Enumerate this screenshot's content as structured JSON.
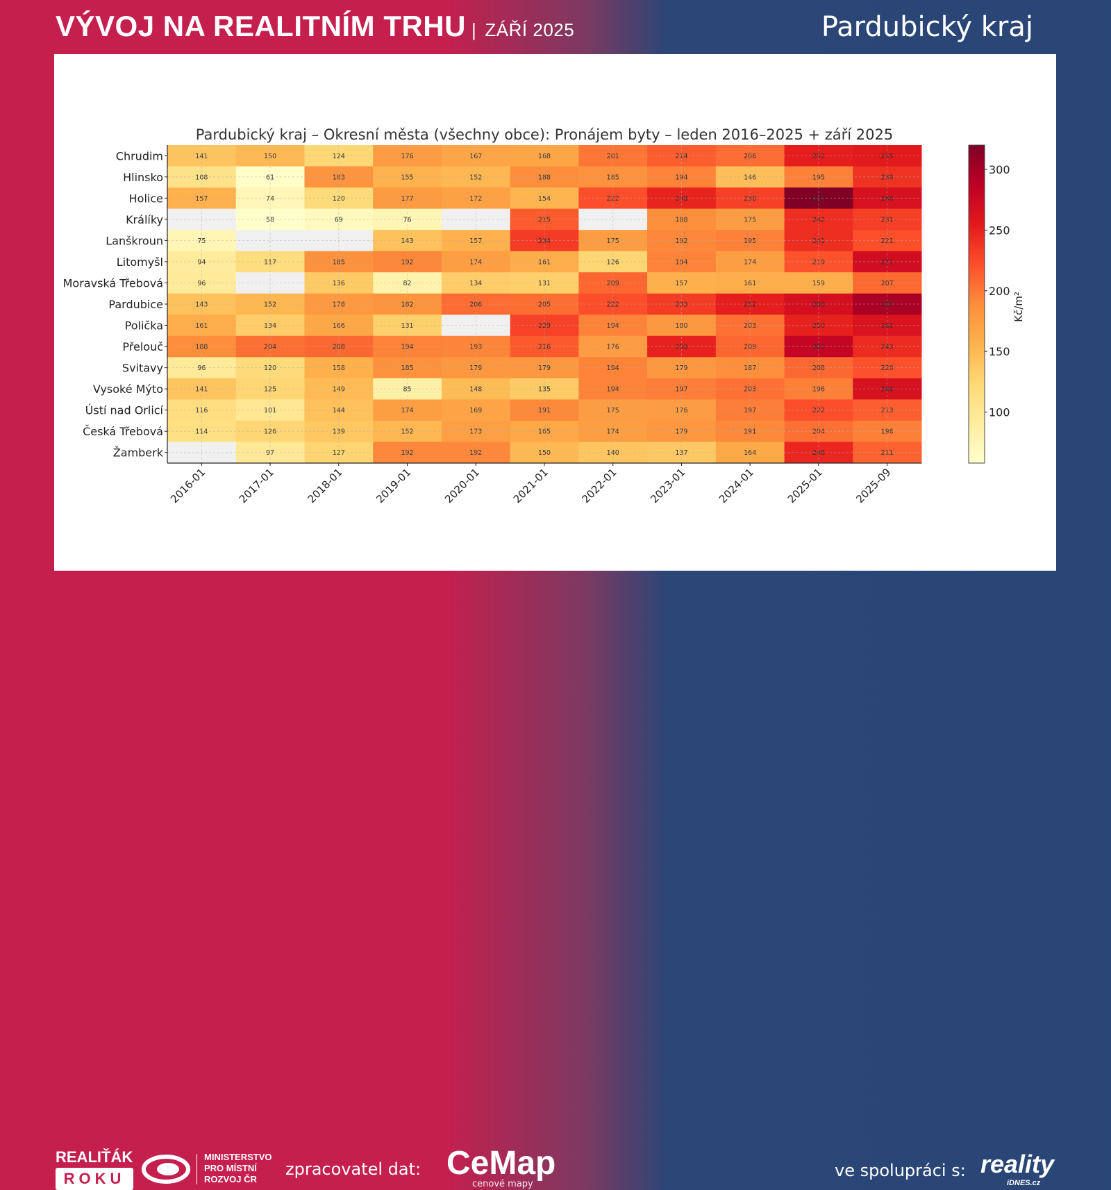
{
  "header": {
    "title": "VÝVOJ NA REALITNÍM TRHU",
    "separator": "|",
    "date": "ZÁŘÍ 2025",
    "region": "Pardubický kraj"
  },
  "footer": {
    "realitak_top": "REALIŤÁK",
    "realitak_bottom": "ROKU",
    "ministry_line1": "MINISTERSTVO",
    "ministry_line2": "PRO MÍSTNÍ",
    "ministry_line3": "ROZVOJ ČR",
    "processor_label": "zpracovatel dat:",
    "cemap_logo": "CeMap",
    "cemap_sub": "cenové mapy",
    "cooperation_label": "ve spolupráci s:",
    "reality_logo": "reality",
    "reality_sub": "iDNES.cz"
  },
  "colors": {
    "brand_red": "#c51f4e",
    "brand_blue": "#2a4677",
    "missing_cell": "#f0f0f0"
  },
  "chart_data": {
    "type": "heatmap",
    "title": "Pardubický kraj – Okresní města (všechny obce): Pronájem byty – leden 2016–2025 + září 2025",
    "xlabel": "",
    "ylabel": "",
    "colorbar_label": "Kč/m²",
    "colormap": "YlOrRd",
    "vmin": 58,
    "vmax": 320,
    "colorbar_ticks": [
      100,
      150,
      200,
      250,
      300
    ],
    "grid": true,
    "x": [
      "2016-01",
      "2017-01",
      "2018-01",
      "2019-01",
      "2020-01",
      "2021-01",
      "2022-01",
      "2023-01",
      "2024-01",
      "2025-01",
      "2025-09"
    ],
    "y": [
      "Chrudim",
      "Hlinsko",
      "Holice",
      "Králíky",
      "Lanškroun",
      "Litomyšl",
      "Moravská Třebová",
      "Pardubice",
      "Polička",
      "Přelouč",
      "Svitavy",
      "Vysoké Mýto",
      "Ústí nad Orlicí",
      "Česká Třebová",
      "Žamberk"
    ],
    "values": [
      [
        141,
        150,
        124,
        176,
        167,
        168,
        201,
        214,
        206,
        252,
        255
      ],
      [
        108,
        61,
        183,
        155,
        152,
        188,
        185,
        194,
        146,
        195,
        239
      ],
      [
        157,
        74,
        120,
        177,
        172,
        154,
        222,
        248,
        230,
        320,
        266
      ],
      [
        null,
        58,
        69,
        76,
        null,
        215,
        null,
        188,
        175,
        242,
        231
      ],
      [
        75,
        null,
        null,
        143,
        157,
        234,
        175,
        192,
        195,
        241,
        221
      ],
      [
        94,
        117,
        185,
        192,
        174,
        161,
        126,
        194,
        174,
        219,
        271
      ],
      [
        96,
        null,
        136,
        82,
        134,
        131,
        209,
        157,
        161,
        159,
        207
      ],
      [
        143,
        152,
        178,
        182,
        206,
        205,
        222,
        233,
        252,
        268,
        297
      ],
      [
        161,
        134,
        166,
        131,
        null,
        229,
        194,
        180,
        203,
        250,
        262
      ],
      [
        188,
        204,
        208,
        194,
        193,
        216,
        176,
        250,
        209,
        281,
        243
      ],
      [
        96,
        120,
        158,
        185,
        179,
        179,
        194,
        179,
        187,
        208,
        220
      ],
      [
        141,
        125,
        149,
        85,
        148,
        135,
        194,
        197,
        203,
        196,
        266
      ],
      [
        116,
        101,
        144,
        174,
        169,
        191,
        175,
        176,
        197,
        222,
        213
      ],
      [
        114,
        126,
        139,
        152,
        173,
        165,
        174,
        179,
        191,
        204,
        196
      ],
      [
        null,
        97,
        127,
        192,
        192,
        150,
        140,
        137,
        164,
        246,
        211
      ]
    ]
  }
}
